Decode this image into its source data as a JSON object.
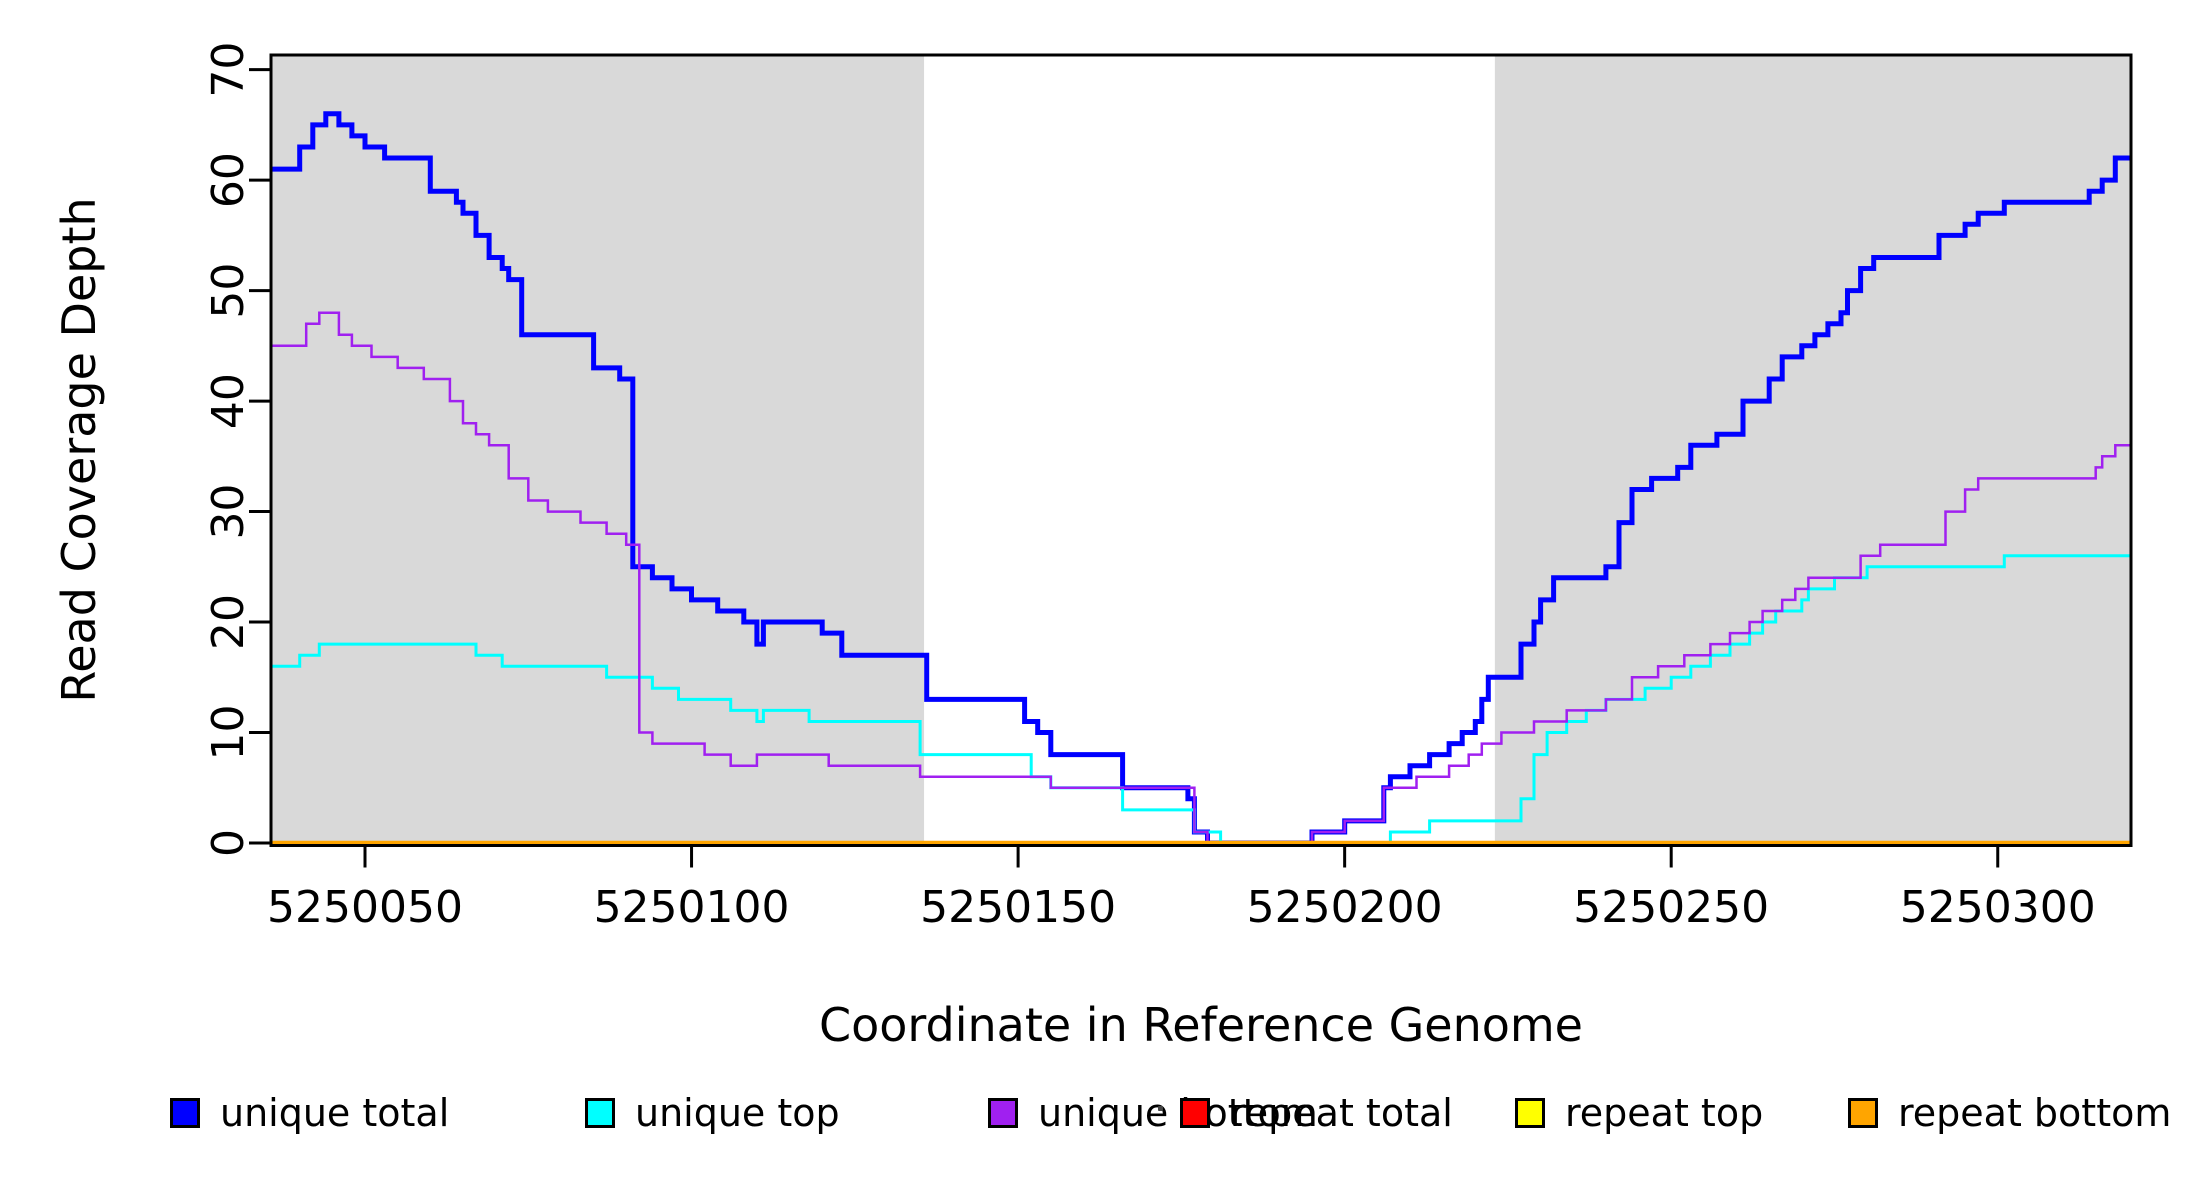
{
  "chart_data": {
    "type": "line",
    "subtype": "step-after",
    "title": "",
    "xlabel": "Coordinate in Reference Genome",
    "ylabel": "Read Coverage Depth",
    "xlim": [
      5250035.6,
      5250320.4
    ],
    "ylim": [
      0,
      70
    ],
    "x_ticks": [
      5250050,
      5250100,
      5250150,
      5250200,
      5250250,
      5250300
    ],
    "x_tick_labels": [
      "5250050",
      "5250100",
      "5250150",
      "5250200",
      "5250250",
      "5250300"
    ],
    "y_ticks": [
      0,
      10,
      20,
      30,
      40,
      50,
      60,
      70
    ],
    "y_tick_labels": [
      "0",
      "10",
      "20",
      "30",
      "40",
      "50",
      "60",
      "70"
    ],
    "grid": false,
    "plot_background": "#ffffff",
    "box_color": "#000000",
    "legend_position": "bottom",
    "shaded_regions": [
      {
        "name": "left-unique-region",
        "x_start": 5250035.6,
        "x_end": 5250135.6,
        "color": "#D9D9D9"
      },
      {
        "name": "right-unique-region",
        "x_start": 5250223.0,
        "x_end": 5250320.4,
        "color": "#D9D9D9"
      }
    ],
    "series": [
      {
        "name": "unique total",
        "color": "#0000FF",
        "line_width": 5,
        "steps": [
          [
            5250036,
            61
          ],
          [
            5250040,
            63
          ],
          [
            5250042,
            65
          ],
          [
            5250044,
            66
          ],
          [
            5250046,
            65
          ],
          [
            5250048,
            64
          ],
          [
            5250050,
            63
          ],
          [
            5250053,
            62
          ],
          [
            5250060,
            59
          ],
          [
            5250064,
            58
          ],
          [
            5250065,
            57
          ],
          [
            5250067,
            55
          ],
          [
            5250069,
            53
          ],
          [
            5250071,
            52
          ],
          [
            5250072,
            51
          ],
          [
            5250074,
            46
          ],
          [
            5250085,
            43
          ],
          [
            5250089,
            42
          ],
          [
            5250091,
            25
          ],
          [
            5250094,
            24
          ],
          [
            5250097,
            23
          ],
          [
            5250100,
            22
          ],
          [
            5250104,
            21
          ],
          [
            5250108,
            20
          ],
          [
            5250110,
            18
          ],
          [
            5250111,
            20
          ],
          [
            5250120,
            19
          ],
          [
            5250123,
            17
          ],
          [
            5250136,
            13
          ],
          [
            5250151,
            11
          ],
          [
            5250153,
            10
          ],
          [
            5250155,
            8
          ],
          [
            5250166,
            5
          ],
          [
            5250176,
            4
          ],
          [
            5250177,
            1
          ],
          [
            5250179,
            0
          ],
          [
            5250195,
            1
          ],
          [
            5250200,
            2
          ],
          [
            5250206,
            5
          ],
          [
            5250207,
            6
          ],
          [
            5250210,
            7
          ],
          [
            5250213,
            8
          ],
          [
            5250216,
            9
          ],
          [
            5250218,
            10
          ],
          [
            5250220,
            11
          ],
          [
            5250221,
            13
          ],
          [
            5250222,
            15
          ],
          [
            5250227,
            18
          ],
          [
            5250229,
            20
          ],
          [
            5250230,
            22
          ],
          [
            5250232,
            24
          ],
          [
            5250240,
            25
          ],
          [
            5250242,
            29
          ],
          [
            5250244,
            32
          ],
          [
            5250247,
            33
          ],
          [
            5250251,
            34
          ],
          [
            5250253,
            36
          ],
          [
            5250257,
            37
          ],
          [
            5250261,
            40
          ],
          [
            5250265,
            42
          ],
          [
            5250267,
            44
          ],
          [
            5250270,
            45
          ],
          [
            5250272,
            46
          ],
          [
            5250274,
            47
          ],
          [
            5250276,
            48
          ],
          [
            5250277,
            50
          ],
          [
            5250279,
            52
          ],
          [
            5250281,
            53
          ],
          [
            5250291,
            55
          ],
          [
            5250295,
            56
          ],
          [
            5250297,
            57
          ],
          [
            5250301,
            58
          ],
          [
            5250314,
            59
          ],
          [
            5250316,
            60
          ],
          [
            5250318,
            62
          ]
        ]
      },
      {
        "name": "unique top",
        "color": "#00FFFF",
        "line_width": 3,
        "steps": [
          [
            5250036,
            16
          ],
          [
            5250040,
            17
          ],
          [
            5250043,
            18
          ],
          [
            5250067,
            17
          ],
          [
            5250071,
            16
          ],
          [
            5250087,
            15
          ],
          [
            5250094,
            14
          ],
          [
            5250098,
            13
          ],
          [
            5250106,
            12
          ],
          [
            5250110,
            11
          ],
          [
            5250111,
            12
          ],
          [
            5250118,
            11
          ],
          [
            5250135,
            8
          ],
          [
            5250152,
            6
          ],
          [
            5250155,
            5
          ],
          [
            5250166,
            3
          ],
          [
            5250177,
            1
          ],
          [
            5250181,
            0
          ],
          [
            5250207,
            1
          ],
          [
            5250213,
            2
          ],
          [
            5250227,
            4
          ],
          [
            5250229,
            8
          ],
          [
            5250231,
            10
          ],
          [
            5250234,
            11
          ],
          [
            5250237,
            12
          ],
          [
            5250240,
            13
          ],
          [
            5250246,
            14
          ],
          [
            5250250,
            15
          ],
          [
            5250253,
            16
          ],
          [
            5250256,
            17
          ],
          [
            5250259,
            18
          ],
          [
            5250262,
            19
          ],
          [
            5250264,
            20
          ],
          [
            5250266,
            21
          ],
          [
            5250270,
            22
          ],
          [
            5250271,
            23
          ],
          [
            5250275,
            24
          ],
          [
            5250280,
            25
          ],
          [
            5250301,
            26
          ]
        ]
      },
      {
        "name": "unique bottom",
        "color": "#A020F0",
        "line_width": 2.5,
        "steps": [
          [
            5250036,
            45
          ],
          [
            5250041,
            47
          ],
          [
            5250043,
            48
          ],
          [
            5250046,
            46
          ],
          [
            5250048,
            45
          ],
          [
            5250051,
            44
          ],
          [
            5250055,
            43
          ],
          [
            5250059,
            42
          ],
          [
            5250063,
            40
          ],
          [
            5250065,
            38
          ],
          [
            5250067,
            37
          ],
          [
            5250069,
            36
          ],
          [
            5250072,
            33
          ],
          [
            5250075,
            31
          ],
          [
            5250078,
            30
          ],
          [
            5250083,
            29
          ],
          [
            5250087,
            28
          ],
          [
            5250090,
            27
          ],
          [
            5250092,
            10
          ],
          [
            5250094,
            9
          ],
          [
            5250102,
            8
          ],
          [
            5250106,
            7
          ],
          [
            5250110,
            8
          ],
          [
            5250121,
            7
          ],
          [
            5250135,
            6
          ],
          [
            5250155,
            5
          ],
          [
            5250177,
            1
          ],
          [
            5250179,
            0
          ],
          [
            5250195,
            1
          ],
          [
            5250200,
            2
          ],
          [
            5250206,
            5
          ],
          [
            5250211,
            6
          ],
          [
            5250216,
            7
          ],
          [
            5250219,
            8
          ],
          [
            5250221,
            9
          ],
          [
            5250224,
            10
          ],
          [
            5250229,
            11
          ],
          [
            5250234,
            12
          ],
          [
            5250240,
            13
          ],
          [
            5250244,
            15
          ],
          [
            5250248,
            16
          ],
          [
            5250252,
            17
          ],
          [
            5250256,
            18
          ],
          [
            5250259,
            19
          ],
          [
            5250262,
            20
          ],
          [
            5250264,
            21
          ],
          [
            5250267,
            22
          ],
          [
            5250269,
            23
          ],
          [
            5250271,
            24
          ],
          [
            5250279,
            26
          ],
          [
            5250282,
            27
          ],
          [
            5250292,
            30
          ],
          [
            5250295,
            32
          ],
          [
            5250297,
            33
          ],
          [
            5250315,
            34
          ],
          [
            5250316,
            35
          ],
          [
            5250318,
            36
          ]
        ]
      },
      {
        "name": "repeat total",
        "color": "#FF0000",
        "line_width": 3,
        "steps": [
          [
            5250036,
            0
          ]
        ]
      },
      {
        "name": "repeat top",
        "color": "#FFFF00",
        "line_width": 3,
        "steps": [
          [
            5250036,
            0
          ]
        ]
      },
      {
        "name": "repeat bottom",
        "color": "#FFA500",
        "line_width": 4.5,
        "steps": [
          [
            5250036,
            0
          ]
        ]
      }
    ]
  },
  "axis": {
    "y_title": "Read Coverage Depth",
    "x_title": "Coordinate in Reference Genome"
  },
  "legend": {
    "items": [
      {
        "label": "unique total",
        "color": "#0000FF"
      },
      {
        "label": "unique top",
        "color": "#00FFFF"
      },
      {
        "label": "unique bottom",
        "color": "#A020F0"
      },
      {
        "label": "repeat total",
        "color": "#FF0000"
      },
      {
        "label": "repeat top",
        "color": "#FFFF00"
      },
      {
        "label": "repeat bottom",
        "color": "#FFA500"
      }
    ]
  }
}
